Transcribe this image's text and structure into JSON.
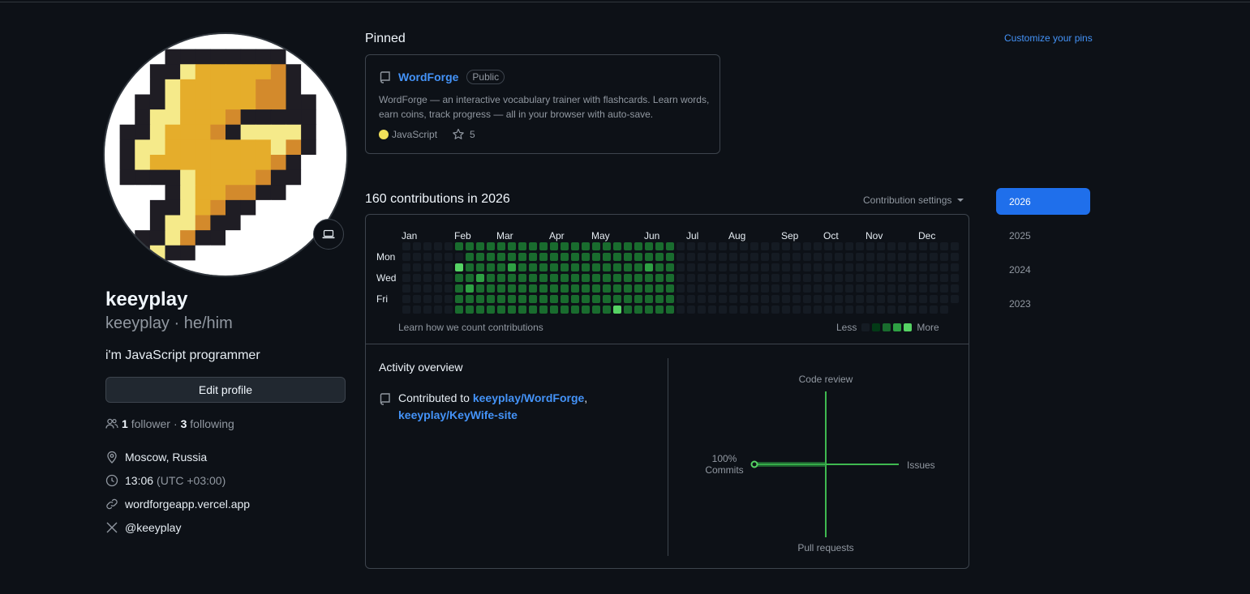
{
  "profile": {
    "name": "keeyplay",
    "login_line": "keeyplay · he/him",
    "bio": "i'm JavaScript programmer",
    "edit_button": "Edit profile",
    "followers_count": "1",
    "followers_label": "follower",
    "separator": "·",
    "following_count": "3",
    "following_label": "following",
    "location": "Moscow, Russia",
    "local_time": "13:06",
    "timezone": "(UTC +03:00)",
    "website": "wordforgeapp.vercel.app",
    "twitter": "@keeyplay"
  },
  "pinned": {
    "title": "Pinned",
    "customize_label": "Customize your pins",
    "repo": {
      "name": "WordForge",
      "visibility": "Public",
      "description": "WordForge — an interactive vocabulary trainer with flashcards. Learn words, earn coins, track progress — all in your browser with auto-save.",
      "language": "JavaScript",
      "language_color": "#f1e05a",
      "stars": "5"
    }
  },
  "contributions": {
    "title": "160 contributions in 2026",
    "settings_label": "Contribution settings",
    "months": [
      "Jan",
      "Feb",
      "Mar",
      "Apr",
      "May",
      "Jun",
      "Jul",
      "Aug",
      "Sep",
      "Oct",
      "Nov",
      "Dec"
    ],
    "day_labels": [
      "Mon",
      "Wed",
      "Fri"
    ],
    "learn_link": "Learn how we count contributions",
    "legend_less": "Less",
    "legend_more": "More",
    "level_colors": [
      "#151b23",
      "#033a16",
      "#196c2e",
      "#2ea043",
      "#56d364"
    ]
  },
  "activity": {
    "title": "Activity overview",
    "contributed_to": "Contributed to",
    "repo1": "keeyplay/WordForge",
    "comma": ",",
    "repo2": "keeyplay/KeyWife-site",
    "axes": {
      "code_review": "Code review",
      "issues": "Issues",
      "pull_requests": "Pull requests",
      "commits_pct": "100%",
      "commits": "Commits"
    }
  },
  "years": [
    "2026",
    "2025",
    "2024",
    "2023"
  ],
  "selected_year": "2026"
}
